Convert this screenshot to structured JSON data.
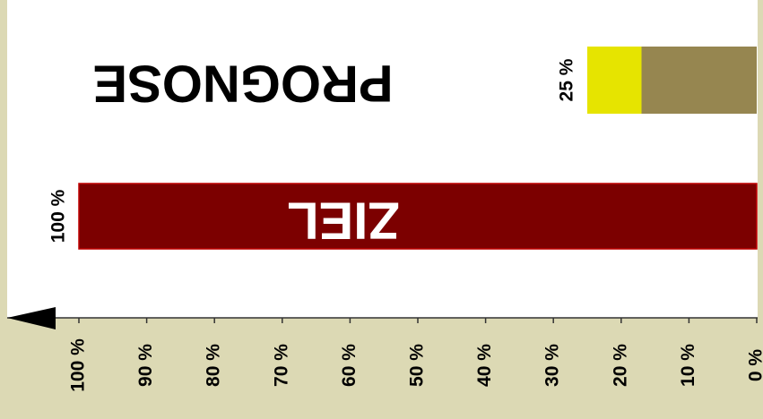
{
  "chart_data": {
    "type": "bar",
    "orientation": "horizontal",
    "stacked": true,
    "reversed": true,
    "categories": [
      "ZIEL",
      "PROGNOSE"
    ],
    "series": [
      {
        "colors": [
          "#7c0000",
          "#968650"
        ],
        "values": [
          100,
          17
        ]
      },
      {
        "color": "#e6e400",
        "values": [
          null,
          8
        ]
      }
    ],
    "total_labels": [
      {
        "value": 100,
        "label": "100 %"
      },
      {
        "value": 25,
        "label": "25 %"
      }
    ],
    "xlim": [
      0,
      100
    ],
    "xticks": [
      {
        "value": 0,
        "label": "0 %"
      },
      {
        "value": 10,
        "label": "10 %"
      },
      {
        "value": 20,
        "label": "20 %"
      },
      {
        "value": 30,
        "label": "30 %"
      },
      {
        "value": 40,
        "label": "40 %"
      },
      {
        "value": 50,
        "label": "50 %"
      },
      {
        "value": 60,
        "label": "60 %"
      },
      {
        "value": 70,
        "label": "70 %"
      },
      {
        "value": 80,
        "label": "80 %"
      },
      {
        "value": 90,
        "label": "90 %"
      },
      {
        "value": 100,
        "label": "100 %"
      }
    ],
    "grid": false
  }
}
